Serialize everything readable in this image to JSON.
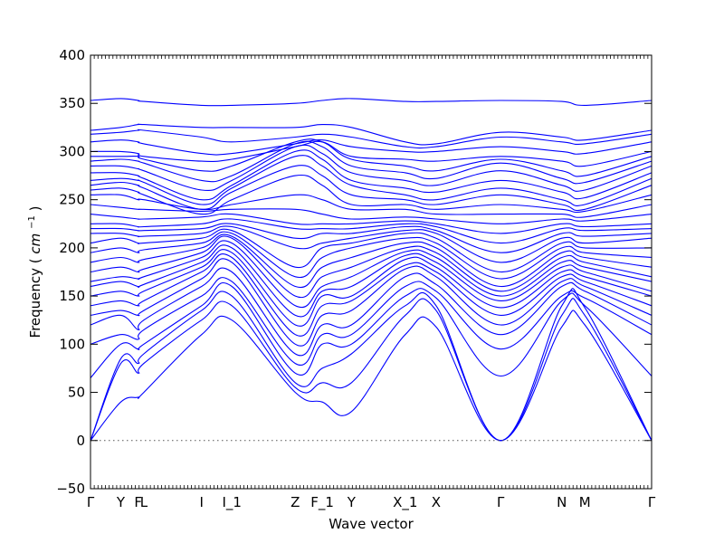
{
  "chart_data": {
    "type": "line",
    "title": "",
    "xlabel": "Wave vector",
    "ylabel": "Frequency",
    "ylabel_unit": "cm",
    "ylabel_unit_exp": "−1",
    "ylim": [
      -50,
      400
    ],
    "yticks": [
      -50,
      0,
      50,
      100,
      150,
      200,
      250,
      300,
      350,
      400
    ],
    "zero_line": true,
    "grid": false,
    "legend": "none",
    "color": "#0000ff",
    "x_range": [
      0,
      1
    ],
    "high_symmetry_points": [
      {
        "label": "Γ",
        "x": 0.0
      },
      {
        "label": "Y",
        "x": 0.054
      },
      {
        "label": "F",
        "x": 0.085
      },
      {
        "label": "L",
        "x": 0.095
      },
      {
        "label": "I",
        "x": 0.198
      },
      {
        "label": "I_1",
        "x": 0.252
      },
      {
        "label": "Z",
        "x": 0.365
      },
      {
        "label": "F_1",
        "x": 0.413
      },
      {
        "label": "Y",
        "x": 0.465
      },
      {
        "label": "X_1",
        "x": 0.561
      },
      {
        "label": "X",
        "x": 0.616
      },
      {
        "label": "Γ",
        "x": 0.731
      },
      {
        "label": "N",
        "x": 0.84
      },
      {
        "label": "M",
        "x": 0.881
      },
      {
        "label": "Γ",
        "x": 1.0
      }
    ],
    "series_x": [
      0.0,
      0.054,
      0.085,
      0.095,
      0.198,
      0.252,
      0.365,
      0.413,
      0.465,
      0.561,
      0.616,
      0.731,
      0.84,
      0.881,
      1.0
    ],
    "series": [
      {
        "values": [
          0,
          40,
          45,
          50,
          110,
          125,
          50,
          40,
          30,
          110,
          118,
          0,
          118,
          120,
          0
        ]
      },
      {
        "values": [
          0,
          80,
          70,
          80,
          125,
          140,
          55,
          60,
          60,
          130,
          135,
          0,
          130,
          130,
          0
        ]
      },
      {
        "values": [
          0,
          85,
          80,
          90,
          135,
          150,
          60,
          75,
          90,
          140,
          140,
          0,
          140,
          138,
          0
        ]
      },
      {
        "values": [
          65,
          100,
          95,
          100,
          140,
          160,
          70,
          100,
          100,
          150,
          148,
          67,
          145,
          140,
          67
        ]
      },
      {
        "values": [
          100,
          110,
          105,
          115,
          150,
          165,
          80,
          110,
          110,
          160,
          155,
          95,
          150,
          148,
          110
        ]
      },
      {
        "values": [
          120,
          130,
          115,
          125,
          160,
          175,
          90,
          120,
          120,
          170,
          162,
          110,
          160,
          155,
          120
        ]
      },
      {
        "values": [
          130,
          135,
          130,
          135,
          168,
          185,
          100,
          130,
          135,
          178,
          170,
          120,
          165,
          160,
          130
        ]
      },
      {
        "values": [
          140,
          145,
          140,
          145,
          175,
          190,
          110,
          140,
          145,
          182,
          175,
          130,
          170,
          165,
          140
        ]
      },
      {
        "values": [
          150,
          155,
          150,
          155,
          180,
          195,
          120,
          150,
          150,
          188,
          180,
          138,
          175,
          170,
          150
        ]
      },
      {
        "values": [
          160,
          165,
          160,
          162,
          185,
          200,
          130,
          155,
          160,
          192,
          185,
          145,
          180,
          175,
          155
        ]
      },
      {
        "values": [
          165,
          170,
          168,
          170,
          190,
          205,
          140,
          160,
          170,
          196,
          190,
          150,
          185,
          180,
          165
        ]
      },
      {
        "values": [
          175,
          180,
          175,
          178,
          195,
          210,
          150,
          170,
          180,
          200,
          195,
          155,
          190,
          185,
          170
        ]
      },
      {
        "values": [
          185,
          190,
          185,
          188,
          200,
          212,
          160,
          180,
          190,
          205,
          200,
          160,
          195,
          190,
          180
        ]
      },
      {
        "values": [
          195,
          200,
          195,
          198,
          205,
          215,
          170,
          190,
          200,
          210,
          205,
          168,
          200,
          195,
          190
        ]
      },
      {
        "values": [
          205,
          210,
          205,
          205,
          210,
          218,
          180,
          200,
          205,
          215,
          210,
          175,
          205,
          200,
          200
        ]
      },
      {
        "values": [
          215,
          215,
          212,
          212,
          215,
          222,
          200,
          205,
          210,
          218,
          215,
          185,
          210,
          205,
          210
        ]
      },
      {
        "values": [
          220,
          220,
          218,
          218,
          220,
          225,
          210,
          215,
          215,
          222,
          218,
          195,
          215,
          212,
          215
        ]
      },
      {
        "values": [
          225,
          225,
          222,
          222,
          225,
          230,
          220,
          220,
          220,
          225,
          222,
          205,
          220,
          218,
          220
        ]
      },
      {
        "values": [
          235,
          232,
          230,
          230,
          232,
          235,
          225,
          225,
          225,
          228,
          225,
          215,
          225,
          222,
          225
        ]
      },
      {
        "values": [
          245,
          242,
          240,
          240,
          238,
          240,
          240,
          235,
          230,
          232,
          230,
          225,
          230,
          228,
          235
        ]
      },
      {
        "values": [
          255,
          255,
          250,
          250,
          240,
          245,
          255,
          250,
          240,
          240,
          235,
          235,
          235,
          232,
          245
        ]
      },
      {
        "values": [
          260,
          262,
          258,
          255,
          235,
          250,
          275,
          265,
          245,
          245,
          240,
          245,
          240,
          238,
          255
        ]
      },
      {
        "values": [
          265,
          268,
          265,
          262,
          240,
          258,
          285,
          275,
          255,
          250,
          245,
          255,
          245,
          240,
          265
        ]
      },
      {
        "values": [
          270,
          272,
          270,
          268,
          245,
          262,
          295,
          285,
          265,
          255,
          250,
          262,
          250,
          245,
          272
        ]
      },
      {
        "values": [
          278,
          278,
          275,
          272,
          250,
          265,
          300,
          292,
          270,
          262,
          258,
          270,
          258,
          252,
          278
        ]
      },
      {
        "values": [
          285,
          285,
          282,
          280,
          260,
          270,
          305,
          298,
          278,
          270,
          265,
          280,
          265,
          260,
          285
        ]
      },
      {
        "values": [
          290,
          292,
          290,
          288,
          270,
          275,
          308,
          305,
          285,
          278,
          272,
          288,
          272,
          268,
          290
        ]
      },
      {
        "values": [
          295,
          295,
          295,
          292,
          280,
          285,
          310,
          310,
          292,
          285,
          280,
          292,
          280,
          275,
          295
        ]
      },
      {
        "values": [
          300,
          300,
          298,
          295,
          290,
          292,
          305,
          310,
          295,
          292,
          290,
          295,
          290,
          285,
          300
        ]
      },
      {
        "values": [
          310,
          312,
          310,
          308,
          298,
          298,
          308,
          312,
          305,
          300,
          300,
          305,
          300,
          298,
          310
        ]
      },
      {
        "values": [
          318,
          320,
          322,
          322,
          315,
          310,
          315,
          318,
          315,
          305,
          305,
          315,
          310,
          308,
          318
        ]
      },
      {
        "values": [
          322,
          325,
          328,
          328,
          325,
          325,
          325,
          328,
          325,
          310,
          308,
          320,
          315,
          312,
          322
        ]
      },
      {
        "values": [
          353,
          355,
          353,
          352,
          348,
          348,
          350,
          353,
          355,
          352,
          352,
          353,
          352,
          348,
          353
        ]
      }
    ]
  }
}
